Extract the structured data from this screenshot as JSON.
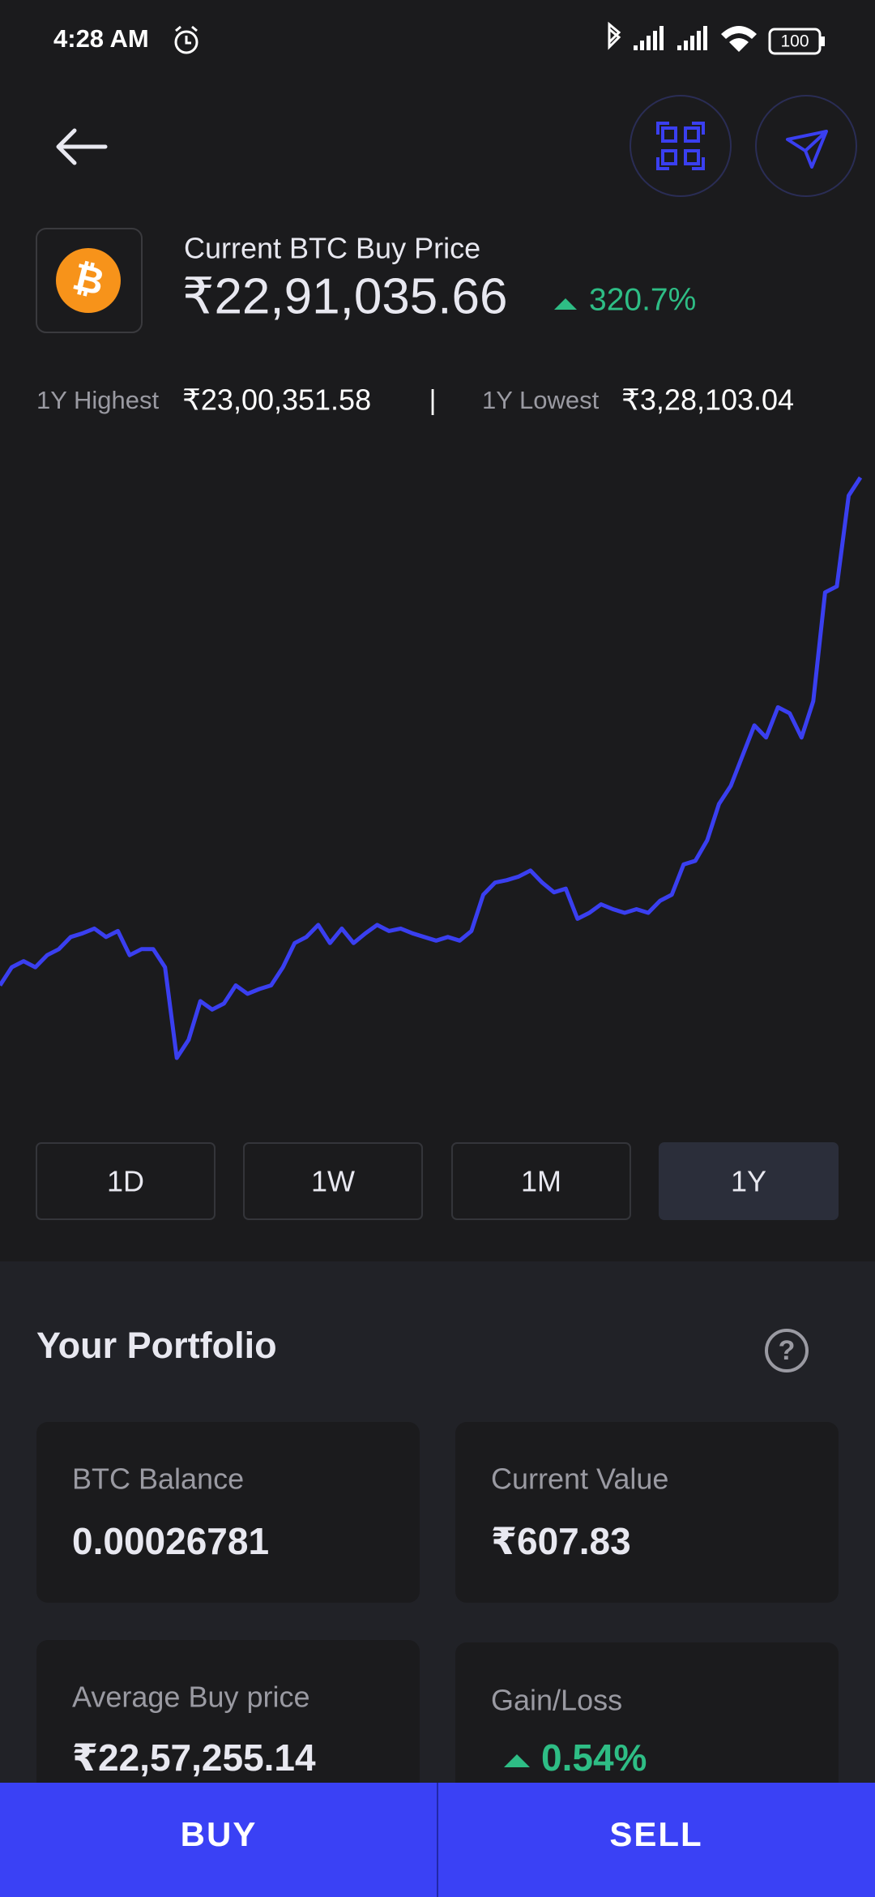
{
  "status_bar": {
    "time": "4:28 AM",
    "battery": "100"
  },
  "header": {
    "title": "Current BTC Buy Price",
    "price": "₹22,91,035.66",
    "change": "320.7%"
  },
  "range_stats": {
    "high_label": "1Y Highest",
    "high_value": "₹23,00,351.58",
    "separator": "|",
    "low_label": "1Y Lowest",
    "low_value": "₹3,28,103.04"
  },
  "chart_data": {
    "type": "line",
    "color": "#3a3ff0",
    "values": [
      592400,
      653400,
      673800,
      653400,
      694100,
      714400,
      755100,
      767300,
      783500,
      755100,
      775400,
      694100,
      714400,
      714400,
      653400,
      348400,
      409400,
      539600,
      511100,
      531400,
      592400,
      564000,
      580200,
      592400,
      653400,
      734800,
      755100,
      795700,
      734800,
      783500,
      734800,
      767300,
      795700,
      775400,
      783500,
      767300,
      755100,
      742900,
      755100,
      742900,
      775400,
      897400,
      938100,
      946200,
      958400,
      978700,
      938100,
      905500,
      917700,
      816100,
      836400,
      864900,
      848600,
      836400,
      848600,
      836400,
      877100,
      897400,
      999100,
      1011300,
      1080400,
      1202400,
      1263400,
      1365100,
      1466700,
      1426100,
      1527700,
      1507400,
      1426100,
      1548100,
      1914000,
      1934400,
      2239400,
      2300400
    ]
  },
  "periods": {
    "options": [
      "1D",
      "1W",
      "1M",
      "1Y"
    ],
    "selected": "1Y"
  },
  "portfolio": {
    "title": "Your Portfolio",
    "cards": [
      {
        "label": "BTC Balance",
        "value": "0.00026781"
      },
      {
        "label": "Current Value",
        "value": "₹607.83"
      },
      {
        "label": "Average Buy price",
        "value": "₹22,57,255.14"
      },
      {
        "label": "Gain/Loss",
        "value": "0.54%"
      }
    ]
  },
  "actions": [
    "BUY",
    "SELL"
  ]
}
